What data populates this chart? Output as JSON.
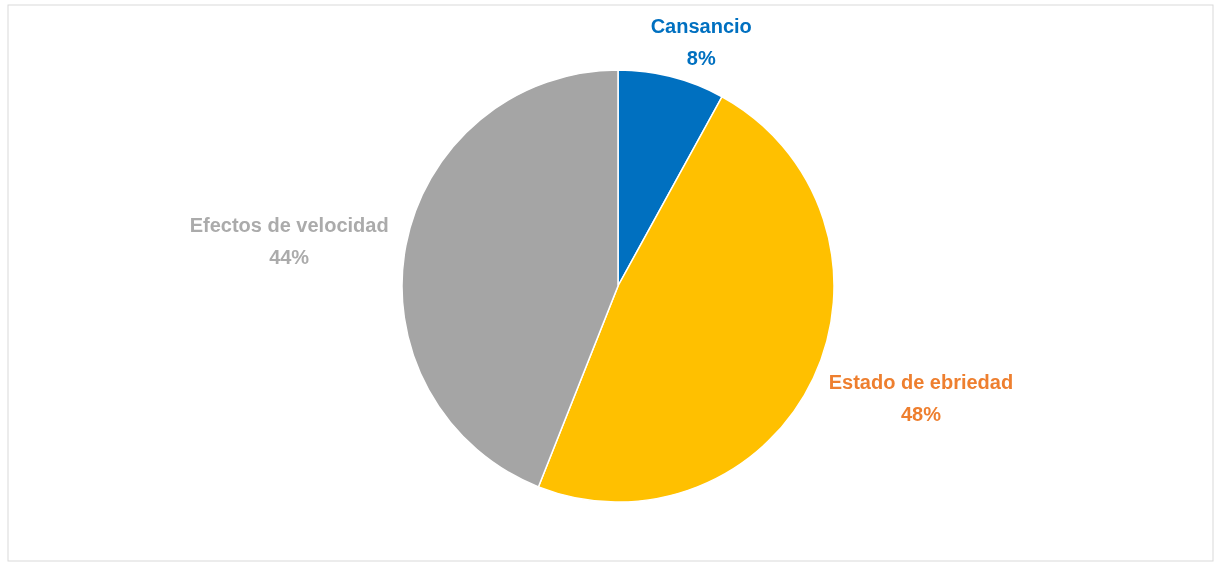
{
  "chart_data": {
    "type": "pie",
    "categories": [
      "Cansancio",
      "Estado de ebriedad",
      "Efectos de velocidad"
    ],
    "values": [
      8,
      48,
      44
    ],
    "colors": [
      "#0070c0",
      "#ffc000",
      "#a5a5a5"
    ],
    "value_labels": [
      "8%",
      "48%",
      "44%"
    ],
    "legend": false
  }
}
